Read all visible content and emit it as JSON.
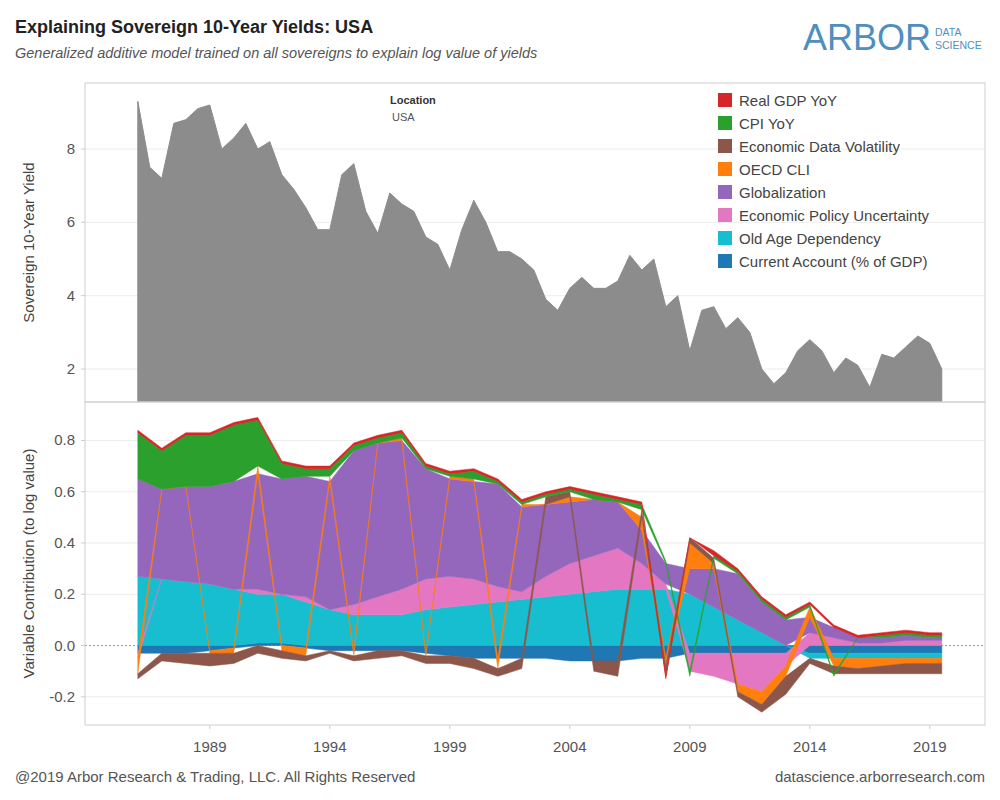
{
  "chart_data": [
    {
      "type": "area",
      "title": "Explaining Sovereign 10-Year Yields: USA",
      "subtitle": "Generalized additive model trained on all sovereigns to explain log value of yields",
      "y_label": "Sovereign 10-Year Yield",
      "annotation": {
        "label": "Location",
        "value": "USA"
      },
      "color": "#8c8c8c",
      "x": [
        1986,
        1986.5,
        1987,
        1987.5,
        1988,
        1988.5,
        1989,
        1989.5,
        1990,
        1990.5,
        1991,
        1991.5,
        1992,
        1992.5,
        1993,
        1993.5,
        1994,
        1994.5,
        1995,
        1995.5,
        1996,
        1996.5,
        1997,
        1997.5,
        1998,
        1998.5,
        1999,
        1999.5,
        2000,
        2000.5,
        2001,
        2001.5,
        2002,
        2002.5,
        2003,
        2003.5,
        2004,
        2004.5,
        2005,
        2005.5,
        2006,
        2006.5,
        2007,
        2007.5,
        2008,
        2008.5,
        2009,
        2009.5,
        2010,
        2010.5,
        2011,
        2011.5,
        2012,
        2012.5,
        2013,
        2013.5,
        2014,
        2014.5,
        2015,
        2015.5,
        2016,
        2016.5,
        2017,
        2017.5,
        2018,
        2018.5,
        2019,
        2019.5
      ],
      "values": [
        9.3,
        7.5,
        7.2,
        8.7,
        8.8,
        9.1,
        9.2,
        8.0,
        8.3,
        8.7,
        8.0,
        8.2,
        7.3,
        6.9,
        6.4,
        5.8,
        5.8,
        7.3,
        7.6,
        6.3,
        5.7,
        6.8,
        6.5,
        6.3,
        5.6,
        5.4,
        4.7,
        5.8,
        6.6,
        6.0,
        5.2,
        5.2,
        5.0,
        4.7,
        3.9,
        3.6,
        4.2,
        4.5,
        4.2,
        4.2,
        4.4,
        5.1,
        4.7,
        5.0,
        3.7,
        4.0,
        2.5,
        3.6,
        3.7,
        3.1,
        3.4,
        3.0,
        2.0,
        1.6,
        1.9,
        2.5,
        2.8,
        2.5,
        1.9,
        2.3,
        2.1,
        1.5,
        2.4,
        2.3,
        2.6,
        2.9,
        2.7,
        2.0
      ],
      "xlim": [
        1983.8,
        2021.3
      ],
      "ylim": [
        1.1,
        9.8
      ],
      "yticks": [
        2,
        4,
        6,
        8
      ],
      "grid": true,
      "tick_labels": "y"
    },
    {
      "type": "area",
      "stacked": true,
      "y_label": "Variable Contribution (to log value)",
      "legend": "top-right",
      "x": [
        1986,
        1987,
        1988,
        1989,
        1990,
        1991,
        1992,
        1993,
        1994,
        1995,
        1996,
        1997,
        1998,
        1999,
        2000,
        2001,
        2002,
        2003,
        2004,
        2005,
        2006,
        2007,
        2008,
        2009,
        2010,
        2011,
        2012,
        2013,
        2014,
        2015,
        2016,
        2017,
        2018,
        2019,
        2019.5
      ],
      "series": [
        {
          "name": "Real GDP YoY",
          "color": "#d62728",
          "values": [
            0.01,
            0.01,
            0.01,
            0.01,
            0.01,
            0.01,
            0.01,
            0.01,
            0.01,
            0.01,
            0.01,
            0.01,
            0.01,
            0.01,
            0.01,
            0.01,
            0.01,
            0.01,
            0.01,
            0.01,
            0.01,
            0.01,
            -0.01,
            0.0,
            0.02,
            0.01,
            0.01,
            0.01,
            0.01,
            0.01,
            0.01,
            0.01,
            0.01,
            0.01,
            0.01
          ]
        },
        {
          "name": "CPI YoY",
          "color": "#2ca02c",
          "values": [
            0.18,
            0.15,
            0.2,
            0.2,
            0.22,
            0.18,
            0.06,
            0.03,
            0.03,
            0.02,
            0.02,
            0.02,
            0.01,
            0.01,
            0.03,
            0.01,
            0.01,
            0.01,
            0.01,
            0.02,
            0.01,
            0.02,
            0.01,
            -0.02,
            0.01,
            0.01,
            0.01,
            0.01,
            0.01,
            -0.01,
            0.0,
            0.01,
            0.01,
            0.01,
            0.01
          ]
        },
        {
          "name": "Economic Data Volatility",
          "color": "#8c564b",
          "values": [
            -0.02,
            -0.03,
            -0.04,
            -0.05,
            -0.04,
            -0.03,
            -0.03,
            -0.02,
            -0.01,
            -0.02,
            -0.03,
            -0.02,
            -0.03,
            -0.03,
            -0.04,
            -0.03,
            -0.04,
            0.03,
            0.02,
            -0.04,
            -0.06,
            0.03,
            -0.04,
            0.02,
            0.02,
            -0.02,
            -0.03,
            -0.07,
            -0.02,
            -0.03,
            -0.02,
            -0.03,
            -0.04,
            -0.04,
            -0.04
          ]
        },
        {
          "name": "OECD CLI",
          "color": "#ff7f0e",
          "values": [
            -0.06,
            0.0,
            0.0,
            -0.01,
            -0.02,
            0.03,
            -0.02,
            -0.03,
            0.02,
            -0.02,
            0.0,
            0.01,
            -0.01,
            0.01,
            0.01,
            -0.04,
            0.01,
            0.0,
            0.02,
            0.0,
            0.0,
            0.05,
            -0.03,
            0.1,
            0.02,
            -0.03,
            -0.05,
            -0.04,
            0.04,
            -0.03,
            -0.04,
            -0.03,
            -0.02,
            -0.02,
            -0.02
          ]
        },
        {
          "name": "Globalization",
          "color": "#9467bd",
          "values": [
            0.38,
            0.35,
            0.37,
            0.38,
            0.42,
            0.45,
            0.45,
            0.47,
            0.5,
            0.6,
            0.6,
            0.58,
            0.43,
            0.38,
            0.38,
            0.4,
            0.33,
            0.28,
            0.24,
            0.22,
            0.18,
            0.13,
            0.08,
            0.1,
            0.15,
            0.18,
            0.12,
            0.1,
            0.06,
            0.04,
            0.02,
            0.02,
            0.02,
            0.01,
            0.01
          ]
        },
        {
          "name": "Economic Policy Uncertainty",
          "color": "#e377c2",
          "values": [
            -0.02,
            0.0,
            0.0,
            0.0,
            0.0,
            0.02,
            0.0,
            0.02,
            0.0,
            0.04,
            0.07,
            0.1,
            0.12,
            0.12,
            0.1,
            0.06,
            0.03,
            0.08,
            0.12,
            0.14,
            0.16,
            0.1,
            0.02,
            -0.07,
            -0.09,
            -0.12,
            -0.15,
            -0.05,
            0.05,
            0.03,
            0.01,
            0.01,
            0.02,
            0.02,
            0.02
          ]
        },
        {
          "name": "Old Age Dependency",
          "color": "#17becf",
          "values": [
            0.27,
            0.26,
            0.25,
            0.24,
            0.22,
            0.19,
            0.19,
            0.17,
            0.14,
            0.12,
            0.12,
            0.12,
            0.14,
            0.15,
            0.16,
            0.17,
            0.18,
            0.19,
            0.2,
            0.21,
            0.22,
            0.22,
            0.22,
            0.2,
            0.15,
            0.1,
            0.05,
            0.0,
            -0.02,
            -0.02,
            -0.02,
            -0.02,
            -0.02,
            -0.02,
            -0.02
          ]
        },
        {
          "name": "Current Account (% of GDP)",
          "color": "#1f77b4",
          "values": [
            -0.03,
            -0.03,
            -0.03,
            -0.02,
            -0.01,
            0.01,
            0.01,
            -0.01,
            -0.02,
            -0.02,
            -0.02,
            -0.02,
            -0.03,
            -0.04,
            -0.05,
            -0.05,
            -0.05,
            -0.05,
            -0.06,
            -0.06,
            -0.06,
            -0.05,
            -0.05,
            -0.03,
            -0.03,
            -0.03,
            -0.03,
            -0.03,
            -0.03,
            -0.03,
            -0.03,
            -0.03,
            -0.03,
            -0.03,
            -0.03
          ]
        }
      ],
      "xlim": [
        1983.8,
        2021.3
      ],
      "ylim": [
        -0.31,
        0.95
      ],
      "xticks": [
        1989,
        1994,
        1999,
        2004,
        2009,
        2014,
        2019
      ],
      "yticks": [
        -0.2,
        {
          "value": 0,
          "label": "0.0"
        },
        0.2,
        0.4,
        0.6,
        0.8
      ],
      "grid": true
    }
  ],
  "branding": {
    "logo": "ARBOR",
    "logo_tag": [
      "DATA",
      "SCIENCE"
    ],
    "copyright": "@2019 Arbor Research & Trading, LLC. All Rights Reserved",
    "url": "datascience.arborresearch.com"
  }
}
